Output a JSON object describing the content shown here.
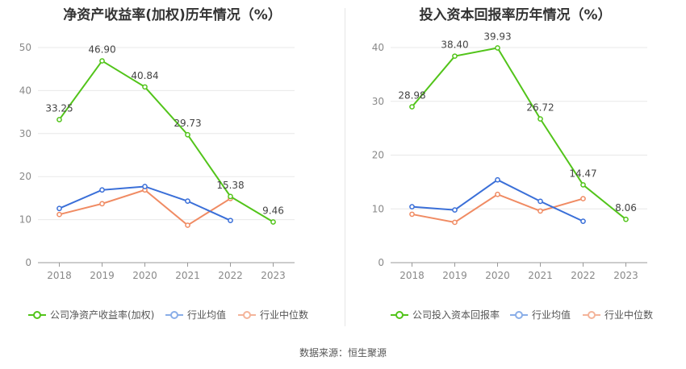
{
  "footer": {
    "source": "数据来源：恒生聚源"
  },
  "colors": {
    "company": "#52c41a",
    "avg": "#3a6fd8",
    "median": "#f08b63",
    "grid": "#e8e8e8"
  },
  "chart_data": [
    {
      "type": "line",
      "title": "净资产收益率(加权)历年情况（%）",
      "categories": [
        "2018",
        "2019",
        "2020",
        "2021",
        "2022",
        "2023"
      ],
      "ylim": [
        0,
        50
      ],
      "yticks": [
        0,
        10,
        20,
        30,
        40,
        50
      ],
      "legend_position": "bottom",
      "series": [
        {
          "name": "公司净资产收益率(加权)",
          "values": [
            33.25,
            46.9,
            40.84,
            29.73,
            15.38,
            9.46
          ],
          "labels": [
            "33.25",
            "46.90",
            "40.84",
            "29.73",
            "15.38",
            "9.46"
          ]
        },
        {
          "name": "行业均值",
          "values": [
            12.6,
            16.9,
            17.7,
            14.3,
            9.8,
            null
          ]
        },
        {
          "name": "行业中位数",
          "values": [
            11.2,
            13.7,
            16.9,
            8.7,
            14.9,
            null
          ]
        }
      ]
    },
    {
      "type": "line",
      "title": "投入资本回报率历年情况（%）",
      "categories": [
        "2018",
        "2019",
        "2020",
        "2021",
        "2022",
        "2023"
      ],
      "ylim": [
        0,
        40
      ],
      "yticks": [
        0,
        10,
        20,
        30,
        40
      ],
      "legend_position": "bottom",
      "series": [
        {
          "name": "公司投入资本回报率",
          "values": [
            28.98,
            38.4,
            39.93,
            26.72,
            14.47,
            8.06
          ],
          "labels": [
            "28.98",
            "38.40",
            "39.93",
            "26.72",
            "14.47",
            "8.06"
          ]
        },
        {
          "name": "行业均值",
          "values": [
            10.4,
            9.8,
            15.4,
            11.4,
            7.7,
            null
          ]
        },
        {
          "name": "行业中位数",
          "values": [
            9.0,
            7.5,
            12.7,
            9.6,
            11.9,
            null
          ]
        }
      ]
    }
  ]
}
